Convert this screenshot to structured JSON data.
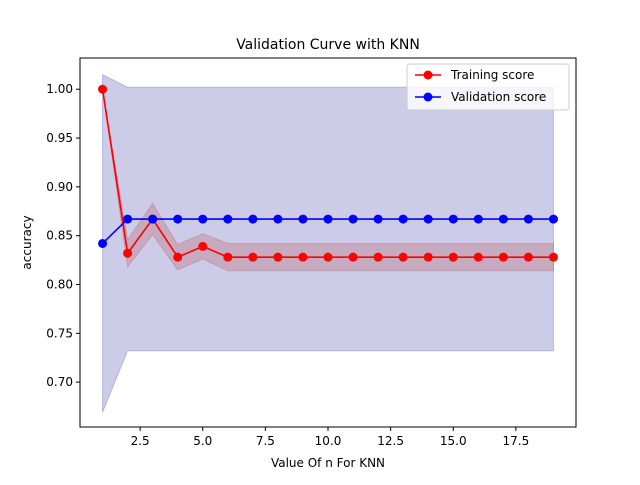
{
  "chart_data": {
    "type": "line",
    "title": "Validation Curve with KNN",
    "xlabel": "Value Of n For KNN",
    "ylabel": "accuracy",
    "xlim": [
      0.1,
      19.9
    ],
    "ylim": [
      0.654,
      1.032
    ],
    "x_ticks": [
      2.5,
      5.0,
      7.5,
      10.0,
      12.5,
      15.0,
      17.5
    ],
    "x_tick_labels": [
      "2.5",
      "5.0",
      "7.5",
      "10.0",
      "12.5",
      "15.0",
      "17.5"
    ],
    "y_ticks": [
      0.7,
      0.75,
      0.8,
      0.85,
      0.9,
      0.95,
      1.0
    ],
    "y_tick_labels": [
      "0.70",
      "0.75",
      "0.80",
      "0.85",
      "0.90",
      "0.95",
      "1.00"
    ],
    "grid": false,
    "legend_position": "top-right",
    "x": [
      1,
      2,
      3,
      4,
      5,
      6,
      7,
      8,
      9,
      10,
      11,
      12,
      13,
      14,
      15,
      16,
      17,
      18,
      19
    ],
    "series": [
      {
        "name": "Training score",
        "color": "#ff0000",
        "values": [
          1.0,
          0.832,
          0.867,
          0.828,
          0.839,
          0.828,
          0.828,
          0.828,
          0.828,
          0.828,
          0.828,
          0.828,
          0.828,
          0.828,
          0.828,
          0.828,
          0.828,
          0.828,
          0.828
        ],
        "band_lower": [
          1.0,
          0.818,
          0.851,
          0.815,
          0.826,
          0.814,
          0.814,
          0.814,
          0.814,
          0.814,
          0.814,
          0.814,
          0.814,
          0.814,
          0.814,
          0.814,
          0.814,
          0.814,
          0.814
        ],
        "band_upper": [
          1.0,
          0.846,
          0.883,
          0.841,
          0.852,
          0.842,
          0.842,
          0.842,
          0.842,
          0.842,
          0.842,
          0.842,
          0.842,
          0.842,
          0.842,
          0.842,
          0.842,
          0.842,
          0.842
        ],
        "band_color": "#b22222"
      },
      {
        "name": "Validation score",
        "color": "#0000ff",
        "values": [
          0.842,
          0.867,
          0.867,
          0.867,
          0.867,
          0.867,
          0.867,
          0.867,
          0.867,
          0.867,
          0.867,
          0.867,
          0.867,
          0.867,
          0.867,
          0.867,
          0.867,
          0.867,
          0.867
        ],
        "band_lower": [
          0.669,
          0.732,
          0.732,
          0.732,
          0.732,
          0.732,
          0.732,
          0.732,
          0.732,
          0.732,
          0.732,
          0.732,
          0.732,
          0.732,
          0.732,
          0.732,
          0.732,
          0.732,
          0.732
        ],
        "band_upper": [
          1.015,
          1.002,
          1.002,
          1.002,
          1.002,
          1.002,
          1.002,
          1.002,
          1.002,
          1.002,
          1.002,
          1.002,
          1.002,
          1.002,
          1.002,
          1.002,
          1.002,
          1.002,
          1.002
        ],
        "band_color": "#00008b"
      }
    ]
  }
}
